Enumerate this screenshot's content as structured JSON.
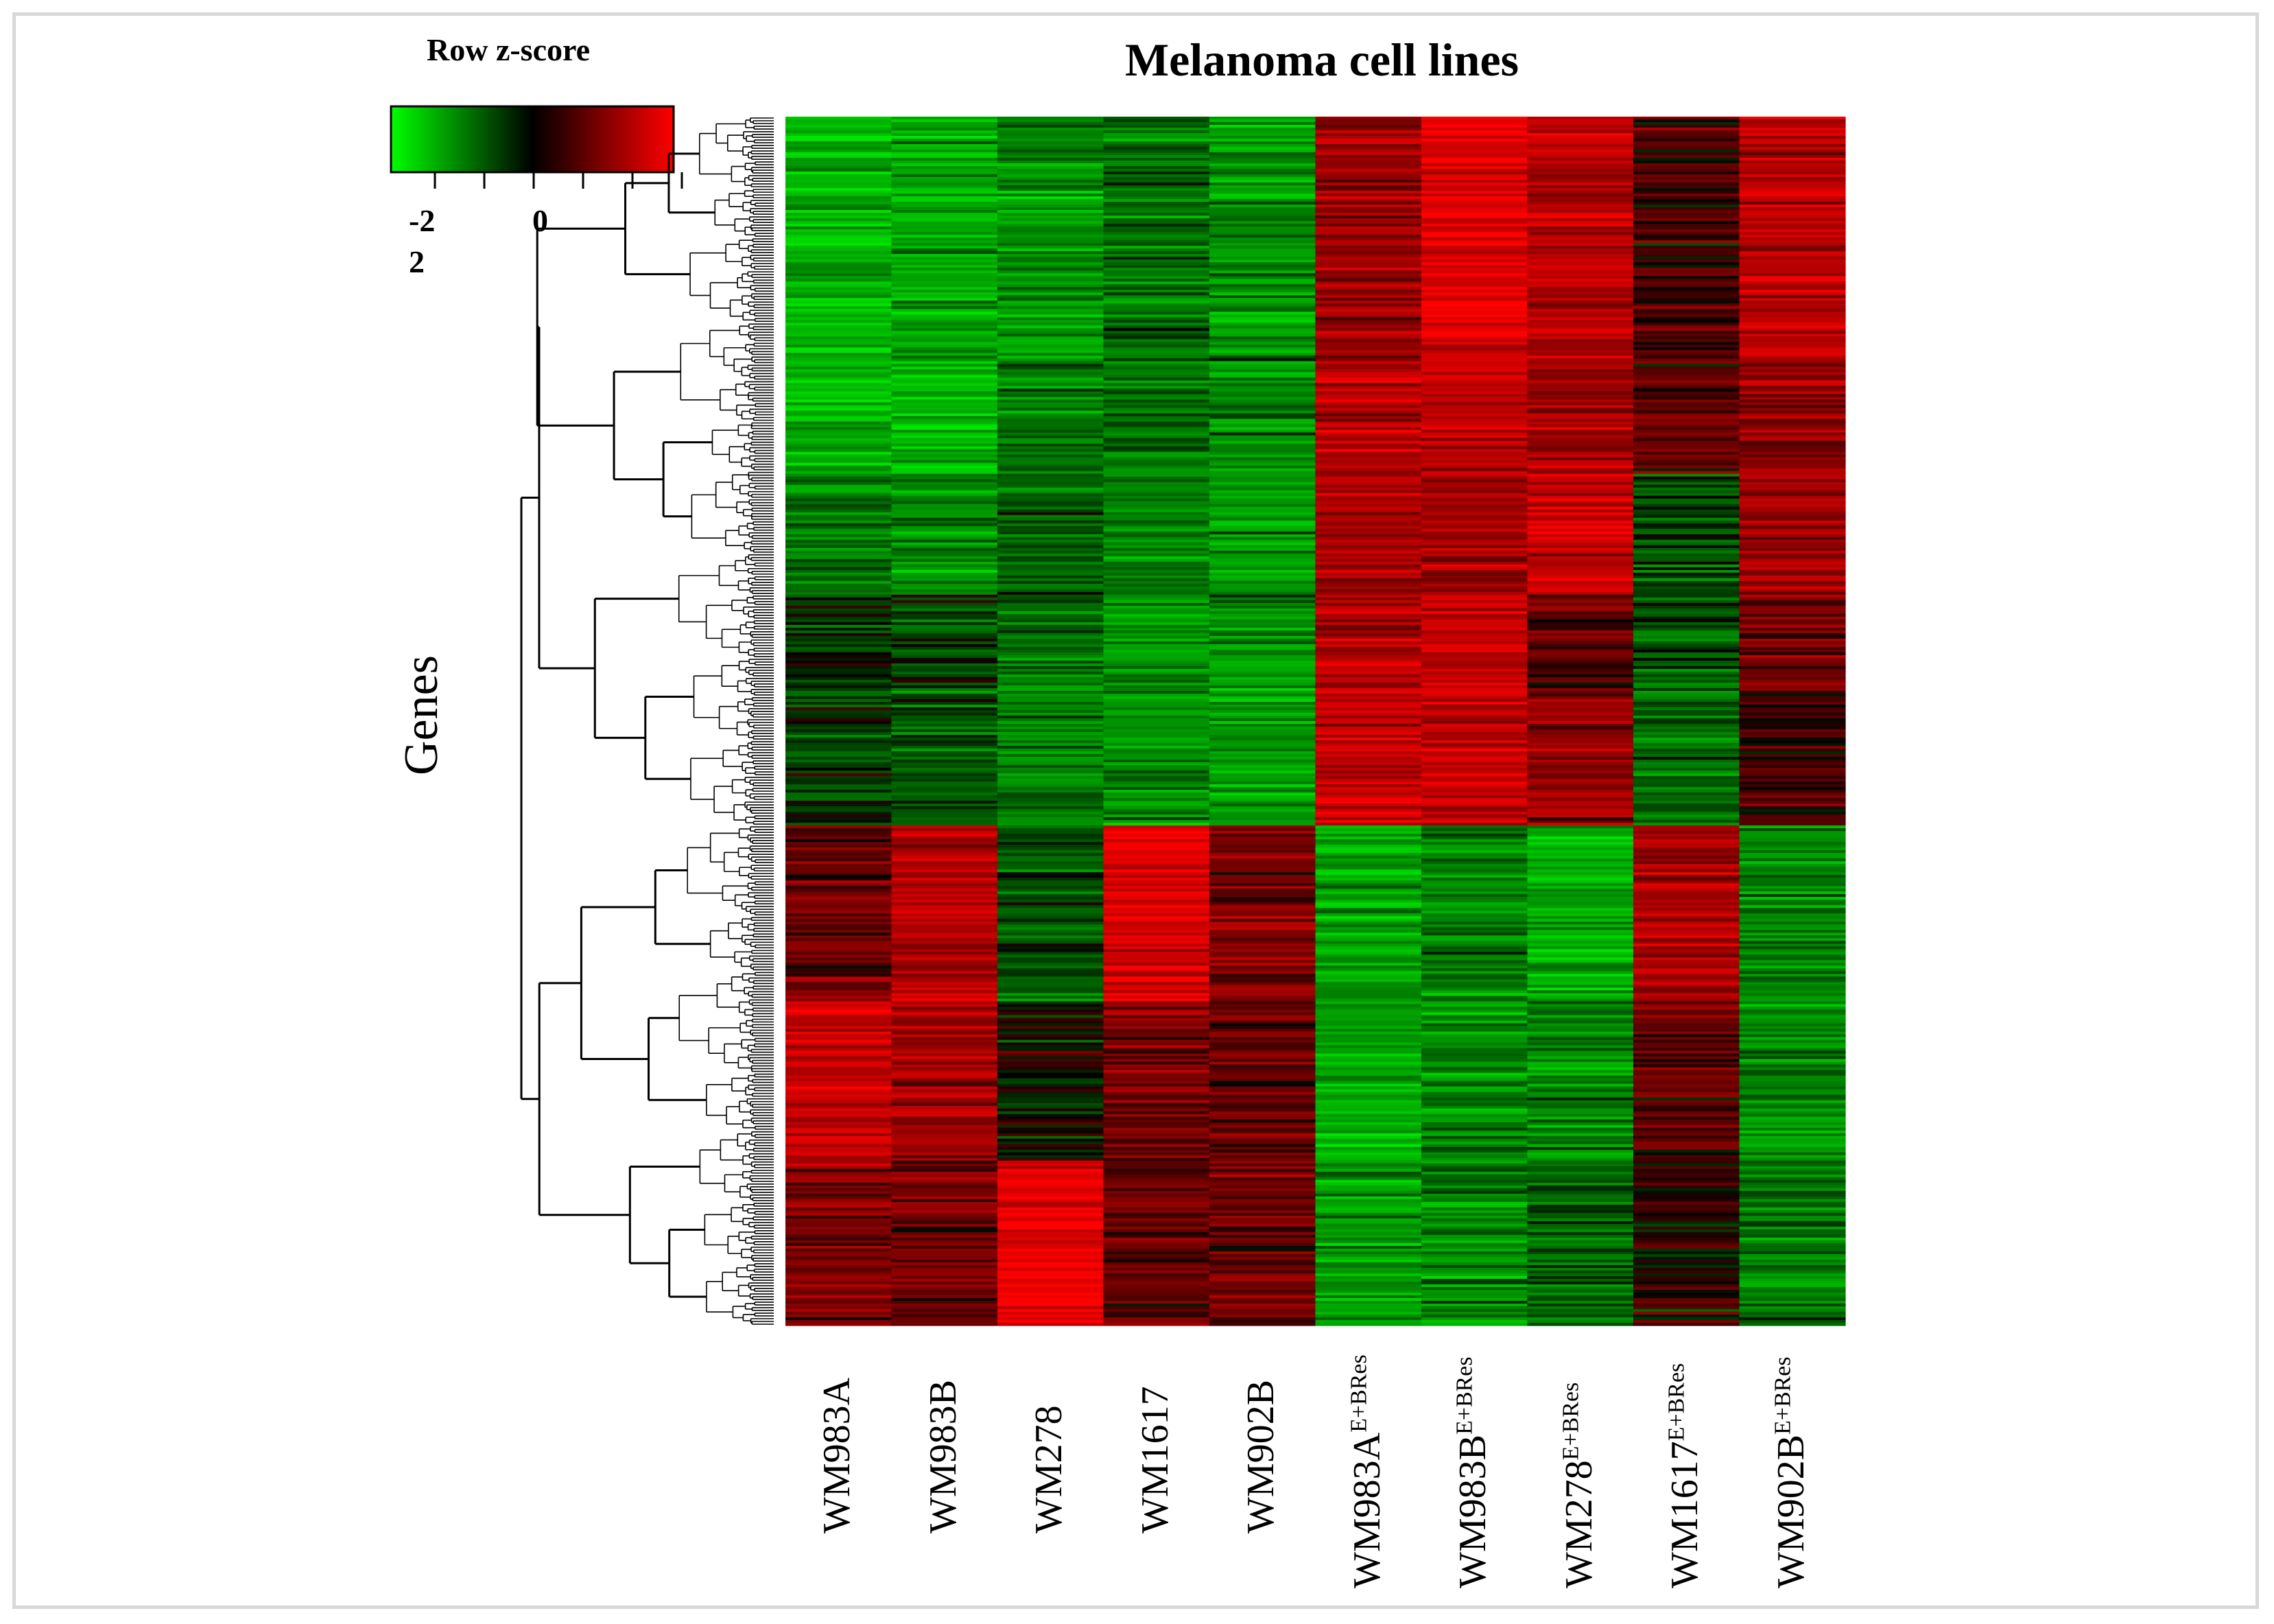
{
  "chart_data": {
    "type": "heatmap",
    "title": "Melanoma cell lines",
    "ylabel": "Genes",
    "legend": {
      "title": "Row z-score",
      "tick_labels": [
        "-2",
        "0",
        "2"
      ],
      "range": [
        -2,
        2
      ],
      "placement": "top-left",
      "low_color": "#00ff00",
      "mid_color": "#000000",
      "high_color": "#ff0000"
    },
    "columns": [
      {
        "base": "WM983A",
        "sup": ""
      },
      {
        "base": "WM983B",
        "sup": ""
      },
      {
        "base": "WM278",
        "sup": ""
      },
      {
        "base": "WM1617",
        "sup": ""
      },
      {
        "base": "WM902B",
        "sup": ""
      },
      {
        "base": "WM983A",
        "sup": "E+BRes"
      },
      {
        "base": "WM983B",
        "sup": "E+BRes"
      },
      {
        "base": "WM278",
        "sup": "E+BRes"
      },
      {
        "base": "WM1617",
        "sup": "E+BRes"
      },
      {
        "base": "WM902B",
        "sup": "E+BRes"
      }
    ],
    "row_clusters": [
      {
        "rows": 88,
        "z": [
          -0.9,
          -0.8,
          -0.7,
          -0.5,
          -0.7,
          0.6,
          1.1,
          0.8,
          0.2,
          0.8
        ]
      },
      {
        "rows": 42,
        "z": [
          -0.9,
          -0.9,
          -0.5,
          -0.5,
          -0.6,
          0.8,
          0.8,
          0.7,
          0.3,
          0.6
        ]
      },
      {
        "rows": 44,
        "z": [
          -0.6,
          -0.6,
          -0.4,
          -0.6,
          -0.7,
          0.7,
          0.7,
          0.9,
          -0.3,
          0.7
        ]
      },
      {
        "rows": 34,
        "z": [
          -0.1,
          -0.3,
          -0.5,
          -0.7,
          -0.6,
          0.8,
          0.9,
          0.3,
          -0.4,
          0.4
        ]
      },
      {
        "rows": 50,
        "z": [
          -0.2,
          -0.3,
          -0.6,
          -0.7,
          -0.7,
          0.9,
          0.9,
          0.6,
          -0.5,
          0.2
        ]
      },
      {
        "rows": 64,
        "z": [
          0.4,
          0.8,
          -0.3,
          1.0,
          0.5,
          -0.8,
          -0.6,
          -0.8,
          0.7,
          -0.6
        ]
      },
      {
        "rows": 58,
        "z": [
          0.9,
          0.7,
          0.0,
          0.5,
          0.4,
          -0.8,
          -0.6,
          -0.6,
          0.3,
          -0.6
        ]
      },
      {
        "rows": 60,
        "z": [
          0.5,
          0.4,
          1.1,
          0.3,
          0.4,
          -0.7,
          -0.6,
          -0.4,
          0.1,
          -0.5
        ]
      }
    ]
  }
}
